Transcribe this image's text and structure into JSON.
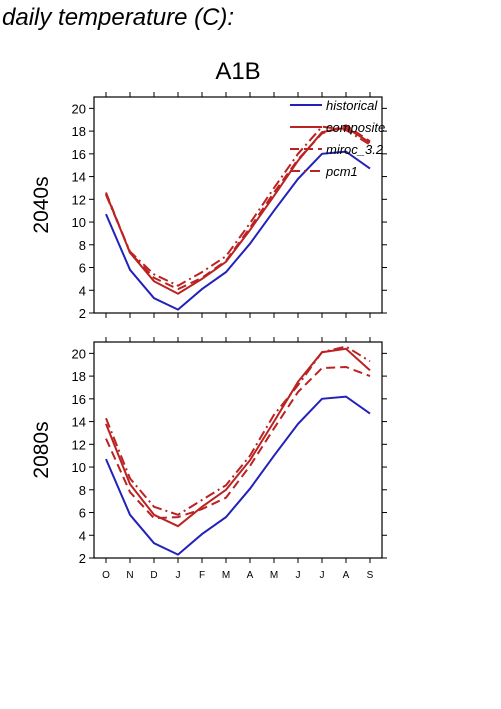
{
  "page_title": "daily temperature (C):",
  "colors": {
    "historical": "#2222bb",
    "projection": "#bb2222",
    "axis": "#000000"
  },
  "chart_data": [
    {
      "type": "line",
      "title": "A1B",
      "ylabel": "2040s",
      "xlabel": "",
      "ylim": [
        2,
        21
      ],
      "yticks": [
        2,
        4,
        6,
        8,
        10,
        12,
        14,
        16,
        18,
        20
      ],
      "grid": false,
      "legend_position": "top-right",
      "categories": [
        "O",
        "N",
        "D",
        "J",
        "F",
        "M",
        "A",
        "M",
        "J",
        "J",
        "A",
        "S"
      ],
      "series": [
        {
          "name": "historical",
          "color": "#2222bb",
          "dash": "solid",
          "values": [
            10.7,
            5.8,
            3.3,
            2.3,
            4.1,
            5.6,
            8.1,
            11.0,
            13.8,
            16.0,
            16.2,
            14.7
          ]
        },
        {
          "name": "composite",
          "color": "#bb2222",
          "dash": "solid",
          "values": [
            12.5,
            7.3,
            4.8,
            3.7,
            5.0,
            6.5,
            9.3,
            12.3,
            15.4,
            17.9,
            18.3,
            17.0
          ]
        },
        {
          "name": "miroc_3.2",
          "color": "#bb2222",
          "dash": "dash",
          "values": [
            12.6,
            7.3,
            5.1,
            4.1,
            5.1,
            6.6,
            9.5,
            12.6,
            15.5,
            17.8,
            18.5,
            17.1
          ]
        },
        {
          "name": "pcm1",
          "color": "#bb2222",
          "dash": "dashdot",
          "values": [
            12.4,
            7.4,
            5.4,
            4.4,
            5.6,
            7.0,
            9.9,
            13.0,
            16.0,
            18.4,
            18.1,
            16.8
          ]
        }
      ]
    },
    {
      "type": "line",
      "title": "",
      "ylabel": "2080s",
      "xlabel": "",
      "ylim": [
        2,
        21
      ],
      "yticks": [
        2,
        4,
        6,
        8,
        10,
        12,
        14,
        16,
        18,
        20
      ],
      "grid": false,
      "categories": [
        "O",
        "N",
        "D",
        "J",
        "F",
        "M",
        "A",
        "M",
        "J",
        "J",
        "A",
        "S"
      ],
      "series": [
        {
          "name": "historical",
          "color": "#2222bb",
          "dash": "solid",
          "values": [
            10.7,
            5.8,
            3.3,
            2.3,
            4.1,
            5.6,
            8.1,
            11.0,
            13.8,
            16.0,
            16.2,
            14.7
          ]
        },
        {
          "name": "composite",
          "color": "#bb2222",
          "dash": "solid",
          "values": [
            13.8,
            8.5,
            5.8,
            4.8,
            6.5,
            8.0,
            10.6,
            14.0,
            17.5,
            20.1,
            20.4,
            18.5
          ]
        },
        {
          "name": "miroc_3.2",
          "color": "#bb2222",
          "dash": "dash",
          "values": [
            12.5,
            7.8,
            5.5,
            5.6,
            6.3,
            7.3,
            10.1,
            13.4,
            16.6,
            18.7,
            18.8,
            18.0
          ]
        },
        {
          "name": "pcm1",
          "color": "#bb2222",
          "dash": "dashdot",
          "values": [
            14.3,
            9.0,
            6.5,
            5.8,
            7.1,
            8.4,
            11.0,
            14.6,
            17.2,
            20.1,
            20.6,
            19.3
          ]
        }
      ]
    }
  ]
}
